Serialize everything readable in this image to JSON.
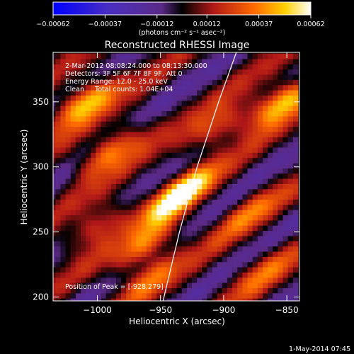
{
  "window": {
    "footer_timestamp": "1-May-2014 07:45"
  },
  "colorbar": {
    "ticks": [
      "-0.00062",
      "-0.00037",
      "-0.00012",
      "0.00012",
      "0.00037",
      "0.00062"
    ],
    "unit_label": "(photons cm⁻² s⁻¹ asec⁻²)",
    "range": [
      -0.00062,
      0.00062
    ]
  },
  "chart_data": {
    "type": "heatmap",
    "title": "Reconstructed RHESSI Image",
    "xlabel": "Heliocentric X (arcsec)",
    "ylabel": "Heliocentric Y (arcsec)",
    "xlim": [
      -1035,
      -840
    ],
    "ylim": [
      197,
      388
    ],
    "x_ticks": [
      -1000,
      -950,
      -900,
      -850
    ],
    "y_ticks": [
      200,
      250,
      300,
      350
    ],
    "x_tick_labels": [
      "−1000",
      "−950",
      "−900",
      "−850"
    ],
    "y_tick_labels": [
      "200",
      "250",
      "300",
      "350"
    ],
    "annotations": [
      "2-Mar-2012 08:08:24.000 to 08:13:30.000",
      "Detectors: 3F 5F 6F 7F 8F 9F, Att 0",
      "Energy Range: 12.0 - 25.0 keV",
      "Clean     Total counts: 1.04E+04"
    ],
    "peak_label": "Position of Peak = [-928,279]",
    "peak": {
      "x": -928,
      "y": 279
    },
    "limb_curve": [
      {
        "x": -948,
        "y": 197
      },
      {
        "x": -935,
        "y": 250
      },
      {
        "x": -921,
        "y": 300
      },
      {
        "x": -904,
        "y": 350
      },
      {
        "x": -890,
        "y": 388
      }
    ],
    "stripe_model": {
      "pixel_arcsec": 4,
      "band_spacing_arcsec": 45,
      "band_slope_deg": 35,
      "bright_blobs": [
        {
          "x": -935,
          "y": 279,
          "v": 0.00062
        },
        {
          "x": -990,
          "y": 312,
          "v": 0.00045
        },
        {
          "x": -855,
          "y": 350,
          "v": 0.00055
        },
        {
          "x": -1010,
          "y": 350,
          "v": 0.00055
        },
        {
          "x": -960,
          "y": 240,
          "v": 0.0004
        },
        {
          "x": -905,
          "y": 330,
          "v": 0.00035
        },
        {
          "x": -1000,
          "y": 255,
          "v": 0.00035
        },
        {
          "x": -960,
          "y": 215,
          "v": 0.00028
        },
        {
          "x": -880,
          "y": 265,
          "v": 0.00025
        },
        {
          "x": -870,
          "y": 220,
          "v": 0.00025
        }
      ]
    }
  }
}
